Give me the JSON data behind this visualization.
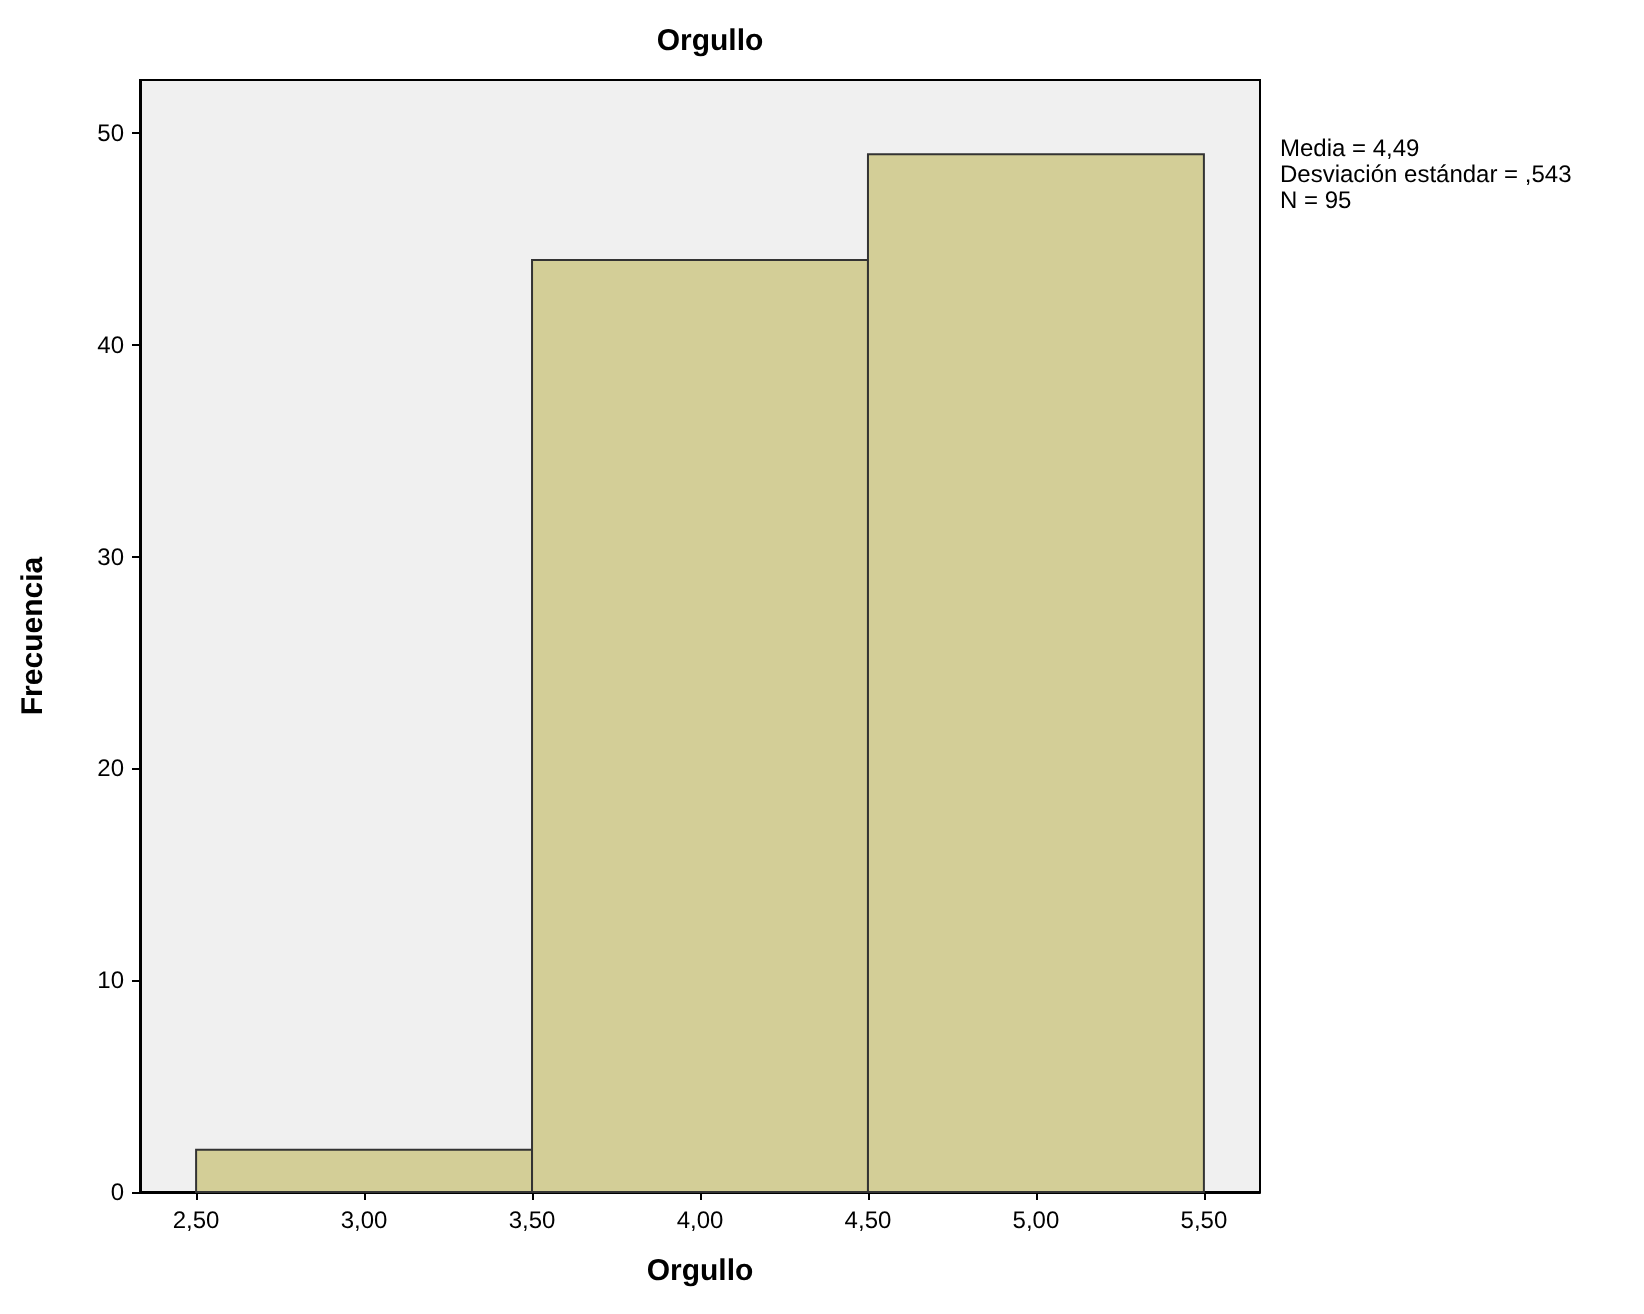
{
  "chart_data": {
    "type": "histogram",
    "title": "Orgullo",
    "xlabel": "Orgullo",
    "ylabel": "Frecuencia",
    "bins": [
      2.5,
      3.5,
      4.5,
      5.5
    ],
    "values": [
      2,
      44,
      49
    ],
    "color": "#d3ce97",
    "xlim": [
      2.333,
      5.667
    ],
    "xticks": [
      {
        "value": 2.5,
        "label": "2,50"
      },
      {
        "value": 3,
        "label": "3,00"
      },
      {
        "value": 3.5,
        "label": "3,50"
      },
      {
        "value": 4,
        "label": "4,00"
      },
      {
        "value": 4.5,
        "label": "4,50"
      },
      {
        "value": 5,
        "label": "5,00"
      },
      {
        "value": 5.5,
        "label": "5,50"
      }
    ],
    "ylim": [
      0,
      52.5
    ],
    "yticks": [
      0,
      10,
      20,
      30,
      40,
      50
    ],
    "grid": false,
    "annotations": [
      "Media = 4,49",
      "Desviación estándar = ,543",
      "N = 95"
    ]
  }
}
